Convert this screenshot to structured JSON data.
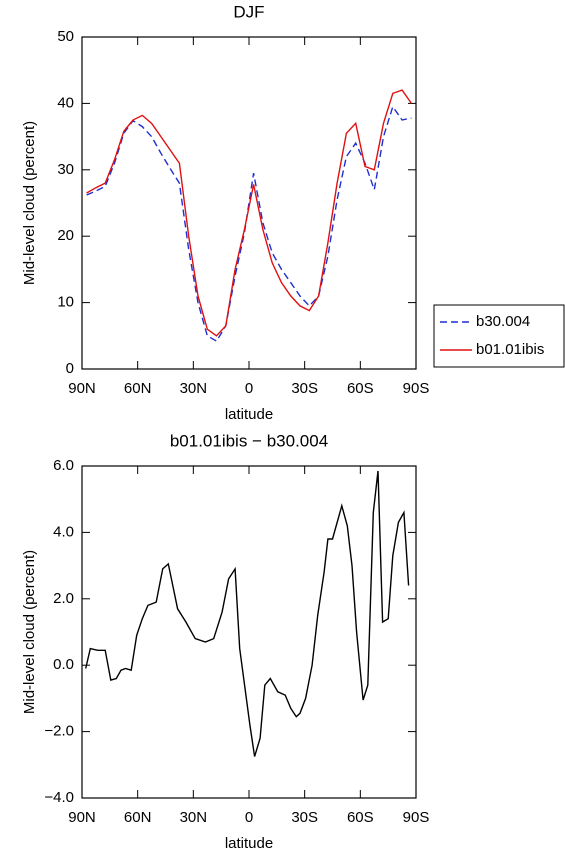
{
  "chart_data": [
    {
      "type": "line",
      "title": "DJF",
      "xlabel": "latitude",
      "ylabel": "Mid-level cloud (percent)",
      "x": [
        87.5,
        82.5,
        77.5,
        72.5,
        67.5,
        62.5,
        57.5,
        52.5,
        47.5,
        42.5,
        37.5,
        32.5,
        27.5,
        22.5,
        17.5,
        12.5,
        7.5,
        2.5,
        -2.5,
        -7.5,
        -12.5,
        -17.5,
        -22.5,
        -27.5,
        -32.5,
        -37.5,
        -42.5,
        -47.5,
        -52.5,
        -57.5,
        -62.5,
        -67.5,
        -72.5,
        -77.5,
        -82.5,
        -87.5
      ],
      "series": [
        {
          "name": "b30.004",
          "color": "#1f2fd0",
          "linestyle": "dashed",
          "values": [
            26.2,
            26.8,
            27.5,
            31,
            35.5,
            37.4,
            36.5,
            35,
            32.5,
            30.2,
            28,
            18,
            10,
            5,
            4.2,
            6.5,
            14,
            20.5,
            29.5,
            22,
            17.5,
            15,
            13,
            11,
            9.5,
            11,
            17,
            25.5,
            32,
            34,
            31,
            27,
            35,
            39.5,
            37.5,
            37.8
          ]
        },
        {
          "name": "b01.01ibis",
          "color": "#e01010",
          "linestyle": "solid",
          "values": [
            26.5,
            27.3,
            28,
            31.5,
            35.8,
            37.5,
            38.2,
            37,
            35,
            33,
            31,
            20,
            11,
            6,
            5,
            6.5,
            15,
            21,
            27.8,
            21,
            16,
            13,
            11,
            9.5,
            8.8,
            11,
            19,
            28,
            35.5,
            37,
            30.5,
            30,
            37,
            41.5,
            42,
            40
          ]
        }
      ],
      "xlim": [
        90,
        -90
      ],
      "xticks": [
        {
          "value": 90,
          "label": "90N"
        },
        {
          "value": 60,
          "label": "60N"
        },
        {
          "value": 30,
          "label": "30N"
        },
        0,
        {
          "value": -30,
          "label": "30S"
        },
        {
          "value": -60,
          "label": "60S"
        },
        {
          "value": -90,
          "label": "90S"
        }
      ],
      "ylim": [
        0,
        50
      ],
      "yticks": [
        0,
        10,
        20,
        30,
        40,
        50
      ],
      "legend": "right"
    },
    {
      "type": "line",
      "title": "b01.01ibis − b30.004",
      "xlabel": "latitude",
      "ylabel": "Mid-level cloud (percent)",
      "x": [
        88,
        85.5,
        81.5,
        77.5,
        74.5,
        71.5,
        69,
        66.5,
        63.5,
        60.5,
        57.5,
        54.5,
        50,
        46.5,
        43.5,
        38.5,
        34,
        29,
        23.5,
        19,
        14.5,
        11,
        7.5,
        5,
        -0.5,
        -3,
        -6,
        -8.5,
        -11.5,
        -15.5,
        -19.5,
        -22.5,
        -25.5,
        -27.5,
        -30.5,
        -34,
        -37,
        -40.5,
        -42.5,
        -45,
        -50,
        -53,
        -55.5,
        -58,
        -61.5,
        -64,
        -67,
        -69.5,
        -72,
        -75,
        -77.5,
        -80.5,
        -83.5,
        -86
      ],
      "series": [
        {
          "color": "#000000",
          "linestyle": "solid",
          "values": [
            -0.1,
            0.5,
            0.45,
            0.45,
            -0.45,
            -0.4,
            -0.15,
            -0.1,
            -0.15,
            0.9,
            1.4,
            1.8,
            1.9,
            2.9,
            3.05,
            1.7,
            1.3,
            0.8,
            0.7,
            0.8,
            1.6,
            2.6,
            2.9,
            0.5,
            -1.8,
            -2.75,
            -2.2,
            -0.6,
            -0.4,
            -0.8,
            -0.9,
            -1.3,
            -1.55,
            -1.45,
            -1.0,
            0,
            1.5,
            2.8,
            3.8,
            3.8,
            4.8,
            4.2,
            3.0,
            1.0,
            -1.05,
            -0.6,
            4.6,
            5.85,
            1.3,
            1.4,
            3.3,
            4.3,
            4.6,
            2.4
          ]
        }
      ],
      "xlim": [
        90,
        -90
      ],
      "xticks": [
        {
          "value": 90,
          "label": "90N"
        },
        {
          "value": 60,
          "label": "60N"
        },
        {
          "value": 30,
          "label": "30N"
        },
        0,
        {
          "value": -30,
          "label": "30S"
        },
        {
          "value": -60,
          "label": "60S"
        },
        {
          "value": -90,
          "label": "90S"
        }
      ],
      "ylim": [
        -4,
        6
      ],
      "yticks": [
        {
          "value": -4,
          "label": "−4.0"
        },
        {
          "value": -2,
          "label": "−2.0"
        },
        {
          "value": 0,
          "label": "0.0"
        },
        {
          "value": 2,
          "label": "2.0"
        },
        {
          "value": 4,
          "label": "4.0"
        },
        {
          "value": 6,
          "label": "6.0"
        }
      ]
    }
  ]
}
